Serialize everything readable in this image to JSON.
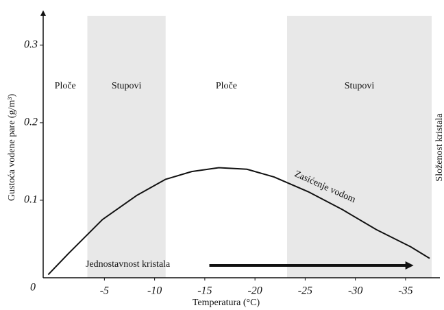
{
  "chart_data": {
    "type": "line",
    "xlabel": "Temperatura (°C)",
    "ylabel": "Gustoća vodene pare (g/m³)",
    "origin_label": "0",
    "x": [
      0.6,
      -1.4,
      -4.8,
      -8.2,
      -11.1,
      -13.7,
      -16.4,
      -19.2,
      -21.9,
      -25.3,
      -28.7,
      -32.1,
      -35.5,
      -37.4
    ],
    "series": [
      {
        "name": "Zasićenje vodom",
        "color": "#111111",
        "values": [
          0.004,
          0.031,
          0.075,
          0.106,
          0.127,
          0.137,
          0.142,
          0.14,
          0.13,
          0.111,
          0.088,
          0.062,
          0.04,
          0.025
        ]
      }
    ],
    "xlim": [
      1.1,
      -37.6
    ],
    "xticks": [
      -5,
      -10,
      -15,
      -20,
      -25,
      -30,
      -35
    ],
    "ylim": [
      0,
      0.345
    ],
    "yticks": [
      0.1,
      0.2,
      0.3
    ],
    "regions": [
      {
        "label": "Ploče",
        "from": 1.1,
        "to": -3.3,
        "shaded": false
      },
      {
        "label": "Stupovi",
        "from": -3.3,
        "to": -11.1,
        "shaded": true
      },
      {
        "label": "Ploče",
        "from": -11.1,
        "to": -23.2,
        "shaded": false
      },
      {
        "label": "Stupovi",
        "from": -23.2,
        "to": -37.6,
        "shaded": true
      }
    ],
    "annotations": {
      "arrow_text": "Jednostavnost kristala",
      "arrow_from": -0.3,
      "arrow_to": -35.8,
      "right_text": "Složenost kristala"
    }
  }
}
